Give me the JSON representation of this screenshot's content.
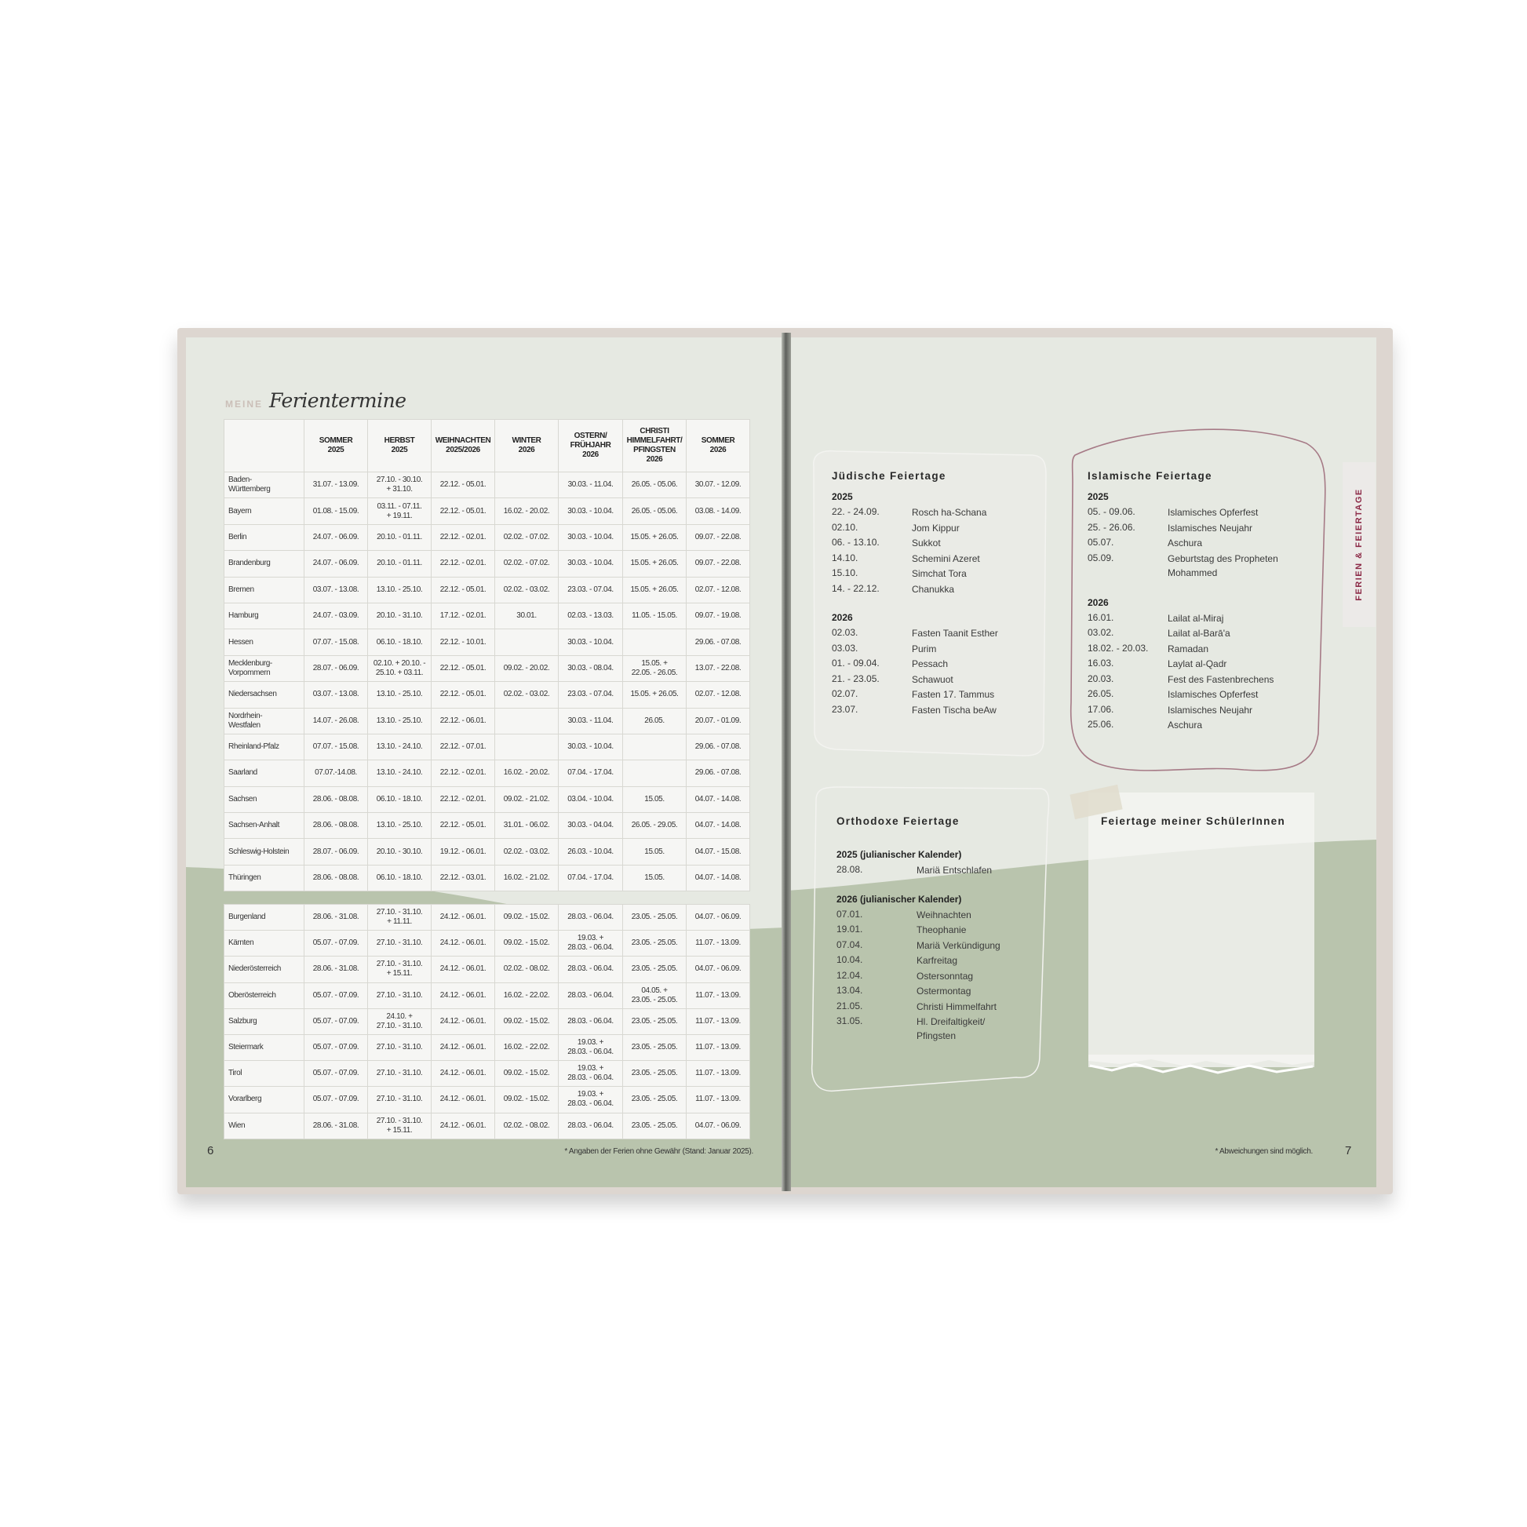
{
  "left_page": {
    "title_prefix": "MEINE",
    "title": "Ferientermine",
    "page_number": "6",
    "footnote": "* Angaben der Ferien ohne Gewähr (Stand: Januar 2025).",
    "table": {
      "headers": [
        "",
        "SOMMER\n2025",
        "HERBST\n2025",
        "WEIHNACHTEN\n2025/2026",
        "WINTER\n2026",
        "OSTERN/\nFRÜHJAHR\n2026",
        "CHRISTI\nHIMMELFAHRT/\nPFINGSTEN\n2026",
        "SOMMER\n2026"
      ],
      "germany": [
        [
          "Baden-\nWürttemberg",
          "31.07. - 13.09.",
          "27.10. - 30.10.\n+ 31.10.",
          "22.12. - 05.01.",
          "",
          "30.03. - 11.04.",
          "26.05. - 05.06.",
          "30.07. - 12.09."
        ],
        [
          "Bayern",
          "01.08. - 15.09.",
          "03.11. - 07.11.\n+ 19.11.",
          "22.12. - 05.01.",
          "16.02. - 20.02.",
          "30.03. - 10.04.",
          "26.05. - 05.06.",
          "03.08. - 14.09."
        ],
        [
          "Berlin",
          "24.07. - 06.09.",
          "20.10. - 01.11.",
          "22.12. - 02.01.",
          "02.02. - 07.02.",
          "30.03. - 10.04.",
          "15.05. + 26.05.",
          "09.07. - 22.08."
        ],
        [
          "Brandenburg",
          "24.07. - 06.09.",
          "20.10. - 01.11.",
          "22.12. - 02.01.",
          "02.02. - 07.02.",
          "30.03. - 10.04.",
          "15.05. + 26.05.",
          "09.07. - 22.08."
        ],
        [
          "Bremen",
          "03.07. - 13.08.",
          "13.10. - 25.10.",
          "22.12. - 05.01.",
          "02.02. - 03.02.",
          "23.03. - 07.04.",
          "15.05. + 26.05.",
          "02.07. - 12.08."
        ],
        [
          "Hamburg",
          "24.07. - 03.09.",
          "20.10. - 31.10.",
          "17.12. - 02.01.",
          "30.01.",
          "02.03. - 13.03.",
          "11.05. - 15.05.",
          "09.07. - 19.08."
        ],
        [
          "Hessen",
          "07.07. - 15.08.",
          "06.10. - 18.10.",
          "22.12. - 10.01.",
          "",
          "30.03. - 10.04.",
          "",
          "29.06. - 07.08."
        ],
        [
          "Mecklenburg-\nVorpommern",
          "28.07. - 06.09.",
          "02.10. + 20.10. -\n25.10. + 03.11.",
          "22.12. - 05.01.",
          "09.02. - 20.02.",
          "30.03. - 08.04.",
          "15.05. +\n22.05. - 26.05.",
          "13.07. - 22.08."
        ],
        [
          "Niedersachsen",
          "03.07. - 13.08.",
          "13.10. - 25.10.",
          "22.12. - 05.01.",
          "02.02. - 03.02.",
          "23.03. - 07.04.",
          "15.05. + 26.05.",
          "02.07. - 12.08."
        ],
        [
          "Nordrhein-\nWestfalen",
          "14.07. - 26.08.",
          "13.10. - 25.10.",
          "22.12. - 06.01.",
          "",
          "30.03. - 11.04.",
          "26.05.",
          "20.07. - 01.09."
        ],
        [
          "Rheinland-Pfalz",
          "07.07. - 15.08.",
          "13.10. - 24.10.",
          "22.12. - 07.01.",
          "",
          "30.03. - 10.04.",
          "",
          "29.06. - 07.08."
        ],
        [
          "Saarland",
          "07.07.-14.08.",
          "13.10. - 24.10.",
          "22.12. - 02.01.",
          "16.02. - 20.02.",
          "07.04. - 17.04.",
          "",
          "29.06. - 07.08."
        ],
        [
          "Sachsen",
          "28.06. - 08.08.",
          "06.10. - 18.10.",
          "22.12. - 02.01.",
          "09.02. - 21.02.",
          "03.04. - 10.04.",
          "15.05.",
          "04.07. - 14.08."
        ],
        [
          "Sachsen-Anhalt",
          "28.06. - 08.08.",
          "13.10. - 25.10.",
          "22.12. - 05.01.",
          "31.01. - 06.02.",
          "30.03. - 04.04.",
          "26.05. - 29.05.",
          "04.07. - 14.08."
        ],
        [
          "Schleswig-Holstein",
          "28.07. - 06.09.",
          "20.10. - 30.10.",
          "19.12. - 06.01.",
          "02.02. - 03.02.",
          "26.03. - 10.04.",
          "15.05.",
          "04.07. - 15.08."
        ],
        [
          "Thüringen",
          "28.06. - 08.08.",
          "06.10. - 18.10.",
          "22.12. - 03.01.",
          "16.02. - 21.02.",
          "07.04. - 17.04.",
          "15.05.",
          "04.07. - 14.08."
        ]
      ],
      "austria": [
        [
          "Burgenland",
          "28.06. - 31.08.",
          "27.10. - 31.10.\n+ 11.11.",
          "24.12. - 06.01.",
          "09.02. - 15.02.",
          "28.03. - 06.04.",
          "23.05. - 25.05.",
          "04.07. - 06.09."
        ],
        [
          "Kärnten",
          "05.07. - 07.09.",
          "27.10. - 31.10.",
          "24.12. - 06.01.",
          "09.02. - 15.02.",
          "19.03. +\n28.03. - 06.04.",
          "23.05. - 25.05.",
          "11.07. - 13.09."
        ],
        [
          "Niederösterreich",
          "28.06. - 31.08.",
          "27.10. - 31.10.\n+ 15.11.",
          "24.12. - 06.01.",
          "02.02. - 08.02.",
          "28.03. - 06.04.",
          "23.05. - 25.05.",
          "04.07. - 06.09."
        ],
        [
          "Oberösterreich",
          "05.07. - 07.09.",
          "27.10. - 31.10.",
          "24.12. - 06.01.",
          "16.02. - 22.02.",
          "28.03. - 06.04.",
          "04.05. +\n23.05. - 25.05.",
          "11.07. - 13.09."
        ],
        [
          "Salzburg",
          "05.07. - 07.09.",
          "24.10. +\n27.10. - 31.10.",
          "24.12. - 06.01.",
          "09.02. - 15.02.",
          "28.03. - 06.04.",
          "23.05. - 25.05.",
          "11.07. - 13.09."
        ],
        [
          "Steiermark",
          "05.07. - 07.09.",
          "27.10. - 31.10.",
          "24.12. - 06.01.",
          "16.02. - 22.02.",
          "19.03. +\n28.03. - 06.04.",
          "23.05. - 25.05.",
          "11.07. - 13.09."
        ],
        [
          "Tirol",
          "05.07. - 07.09.",
          "27.10. - 31.10.",
          "24.12. - 06.01.",
          "09.02. - 15.02.",
          "19.03. +\n28.03. - 06.04.",
          "23.05. - 25.05.",
          "11.07. - 13.09."
        ],
        [
          "Vorarlberg",
          "05.07. - 07.09.",
          "27.10. - 31.10.",
          "24.12. - 06.01.",
          "09.02. - 15.02.",
          "19.03. +\n28.03. - 06.04.",
          "23.05. - 25.05.",
          "11.07. - 13.09."
        ],
        [
          "Wien",
          "28.06. - 31.08.",
          "27.10. - 31.10.\n+ 15.11.",
          "24.12. - 06.01.",
          "02.02. - 08.02.",
          "28.03. - 06.04.",
          "23.05. - 25.05.",
          "04.07. - 06.09."
        ]
      ]
    }
  },
  "right_page": {
    "page_number": "7",
    "footnote": "* Abweichungen sind möglich.",
    "side_tab": "FERIEN & FEIERTAGE",
    "notes_title": "Feiertage meiner SchülerInnen",
    "sections": [
      {
        "id": "juedisch",
        "title": "Jüdische Feiertage",
        "groups": [
          {
            "year": "2025",
            "items": [
              [
                "22. - 24.09.",
                "Rosch ha-Schana"
              ],
              [
                "02.10.",
                "Jom Kippur"
              ],
              [
                "06. - 13.10.",
                "Sukkot"
              ],
              [
                "14.10.",
                "Schemini Azeret"
              ],
              [
                "15.10.",
                "Simchat Tora"
              ],
              [
                "14. - 22.12.",
                "Chanukka"
              ]
            ]
          },
          {
            "year": "2026",
            "items": [
              [
                "02.03.",
                "Fasten Taanit Esther"
              ],
              [
                "03.03.",
                "Purim"
              ],
              [
                "01. - 09.04.",
                "Pessach"
              ],
              [
                "21. - 23.05.",
                "Schawuot"
              ],
              [
                "02.07.",
                "Fasten 17. Tammus"
              ],
              [
                "23.07.",
                "Fasten Tischa beAw"
              ]
            ]
          }
        ]
      },
      {
        "id": "islamisch",
        "title": "Islamische Feiertage",
        "groups": [
          {
            "year": "2025",
            "items": [
              [
                "05. - 09.06.",
                "Islamisches Opferfest"
              ],
              [
                "25. - 26.06.",
                "Islamisches Neujahr"
              ],
              [
                "05.07.",
                "Aschura"
              ],
              [
                "05.09.",
                "Geburtstag des Propheten\nMohammed"
              ]
            ]
          },
          {
            "year": "2026",
            "items": [
              [
                "16.01.",
                "Lailat al-Miraj"
              ],
              [
                "03.02.",
                "Lailat al-Barā'a"
              ],
              [
                "18.02. - 20.03.",
                "Ramadan"
              ],
              [
                "16.03.",
                "Laylat al-Qadr"
              ],
              [
                "20.03.",
                "Fest des Fastenbrechens"
              ],
              [
                "26.05.",
                "Islamisches Opferfest"
              ],
              [
                "17.06.",
                "Islamisches Neujahr"
              ],
              [
                "25.06.",
                "Aschura"
              ]
            ]
          }
        ]
      },
      {
        "id": "orthodox",
        "title": "Orthodoxe Feiertage",
        "groups": [
          {
            "year": "2025 (julianischer Kalender)",
            "items": [
              [
                "28.08.",
                "Mariä Entschlafen"
              ]
            ]
          },
          {
            "year": "2026 (julianischer Kalender)",
            "items": [
              [
                "07.01.",
                "Weihnachten"
              ],
              [
                "19.01.",
                "Theophanie"
              ],
              [
                "07.04.",
                "Mariä Verkündigung"
              ],
              [
                "10.04.",
                "Karfreitag"
              ],
              [
                "12.04.",
                "Ostersonntag"
              ],
              [
                "13.04.",
                "Ostermontag"
              ],
              [
                "21.05.",
                "Christi Himmelfahrt"
              ],
              [
                "31.05.",
                "Hl. Dreifaltigkeit/\nPfingsten"
              ]
            ]
          }
        ]
      }
    ]
  },
  "colors": {
    "page_light": "#e6e9e2",
    "page_green": "#b9c4ad",
    "accent": "#8c2a47",
    "cover": "#ddd6d0"
  }
}
